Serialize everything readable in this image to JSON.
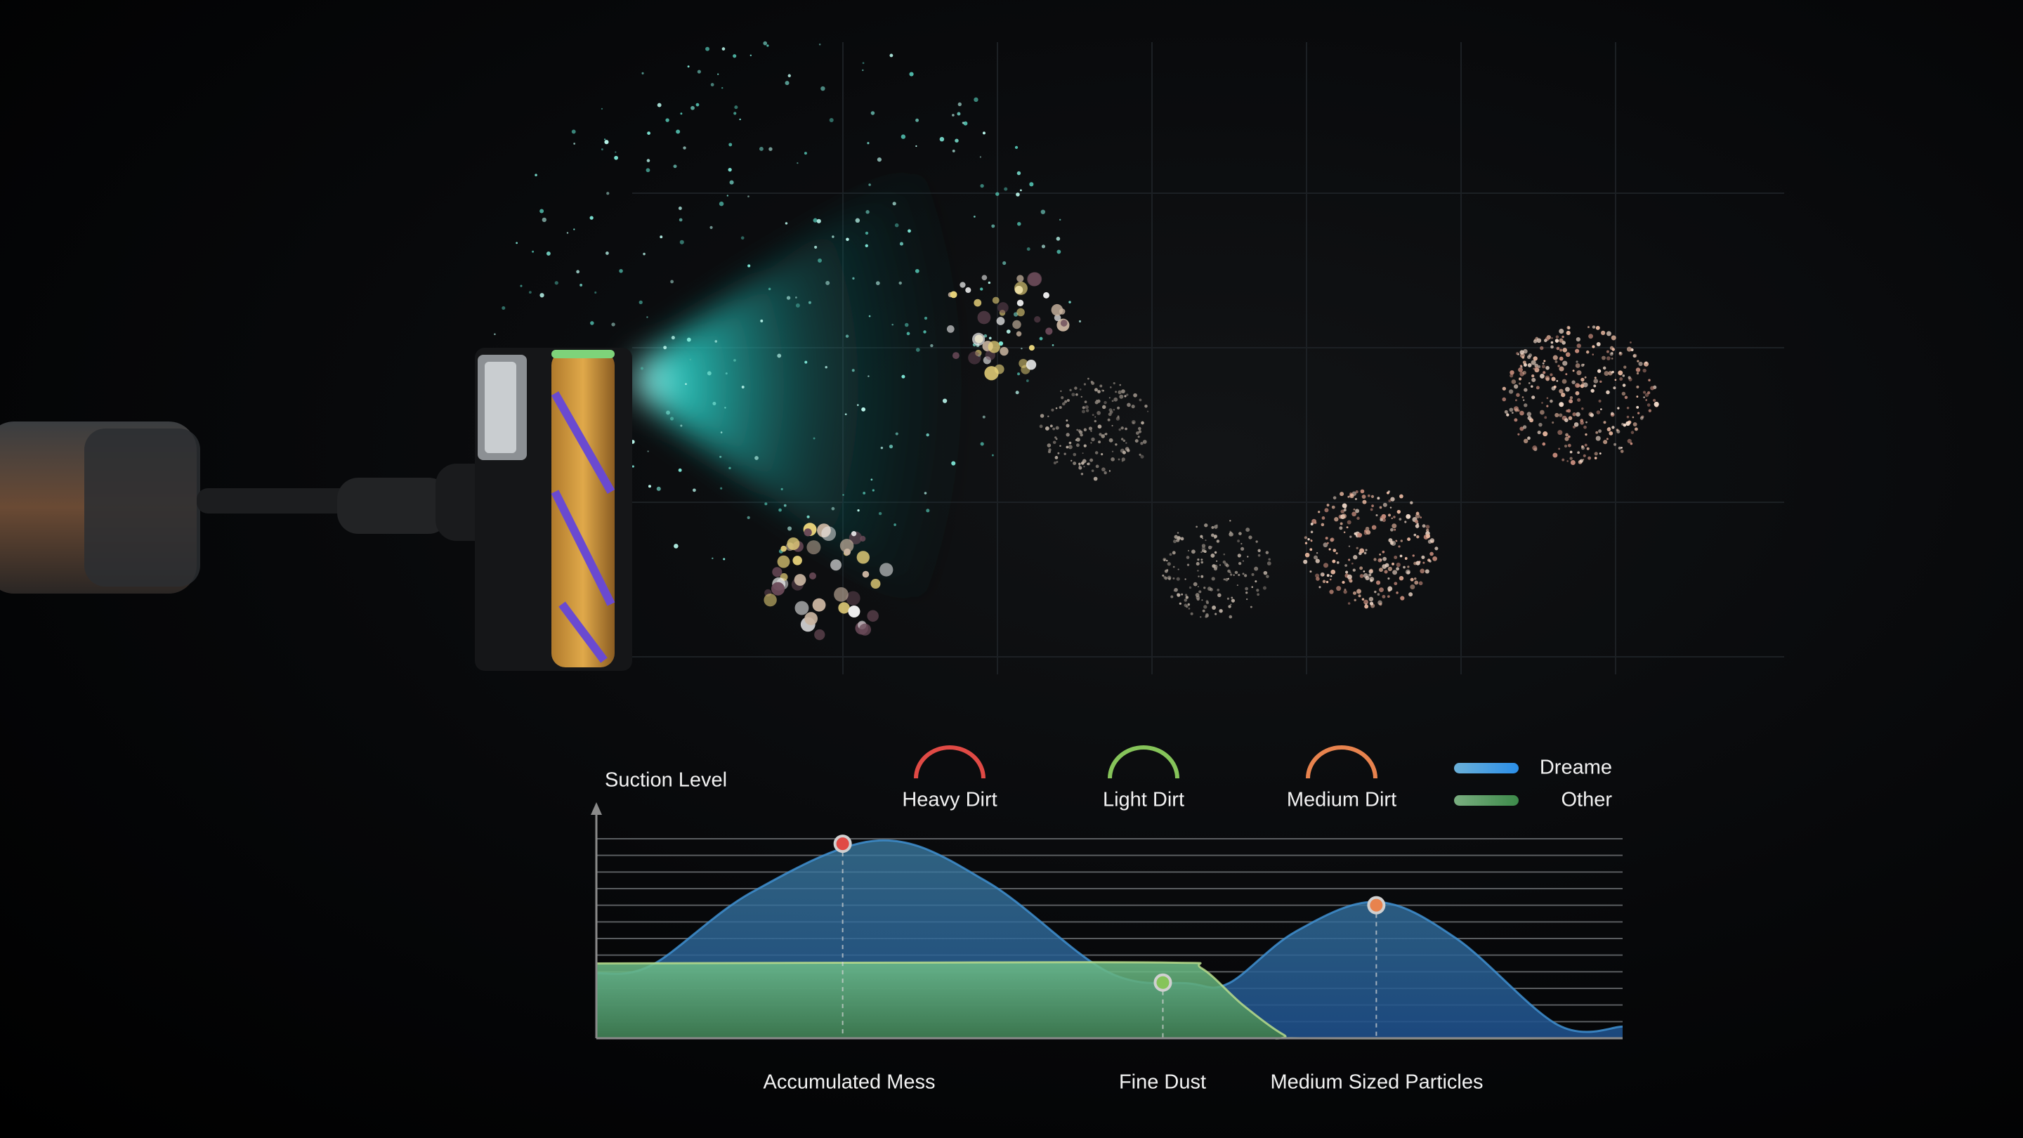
{
  "colors": {
    "dreame": "#3f8fd0",
    "other": "#5fae6a",
    "heavy_dirt": "#e04a45",
    "light_dirt": "#86c45a",
    "medium_dirt": "#e8834e",
    "light_beam": "#2fe0d6"
  },
  "chart_data": {
    "type": "area",
    "ylabel": "Suction Level",
    "xlabel": "",
    "ylim": [
      0,
      12
    ],
    "xlim": [
      0,
      100
    ],
    "grid": true,
    "legend_placement": "top-right",
    "legend": [
      {
        "name": "Dreame",
        "color": "#3f8fd0"
      },
      {
        "name": "Other",
        "color": "#5fae6a"
      }
    ],
    "dirt_types": [
      {
        "name": "Heavy Dirt",
        "color": "#e04a45",
        "icon": "arc-icon"
      },
      {
        "name": "Light Dirt",
        "color": "#86c45a",
        "icon": "arc-icon"
      },
      {
        "name": "Medium Dirt",
        "color": "#e8834e",
        "icon": "arc-icon"
      }
    ],
    "series": [
      {
        "name": "Dreame",
        "points": [
          [
            0,
            3.9
          ],
          [
            5.4,
            4.4
          ],
          [
            15.2,
            8.8
          ],
          [
            27.6,
            11.9
          ],
          [
            38.1,
            9.4
          ],
          [
            49.8,
            4.0
          ],
          [
            57.7,
            3.3
          ],
          [
            61.6,
            3.3
          ],
          [
            68.1,
            6.4
          ],
          [
            76.0,
            8.2
          ],
          [
            83.8,
            6.0
          ],
          [
            93.7,
            0.8
          ],
          [
            100,
            0.7
          ]
        ]
      },
      {
        "name": "Other",
        "points": [
          [
            0,
            4.5
          ],
          [
            30,
            4.55
          ],
          [
            56,
            4.55
          ],
          [
            59,
            4.2
          ],
          [
            63,
            2.0
          ],
          [
            67,
            0.2
          ],
          [
            69,
            0
          ],
          [
            100,
            0
          ]
        ]
      }
    ],
    "markers": [
      {
        "category": "Accumulated Mess",
        "dirt": "Heavy Dirt",
        "x": 24.0,
        "y": 11.7,
        "color": "#e04a45"
      },
      {
        "category": "Fine Dust",
        "dirt": "Light Dirt",
        "x": 55.2,
        "y": 3.35,
        "color": "#86c45a"
      },
      {
        "category": "Medium Sized Particles",
        "dirt": "Medium Dirt",
        "x": 76.0,
        "y": 8.0,
        "color": "#e8834e"
      }
    ],
    "categories": [
      "Accumulated Mess",
      "Fine Dust",
      "Medium Sized Particles"
    ]
  }
}
